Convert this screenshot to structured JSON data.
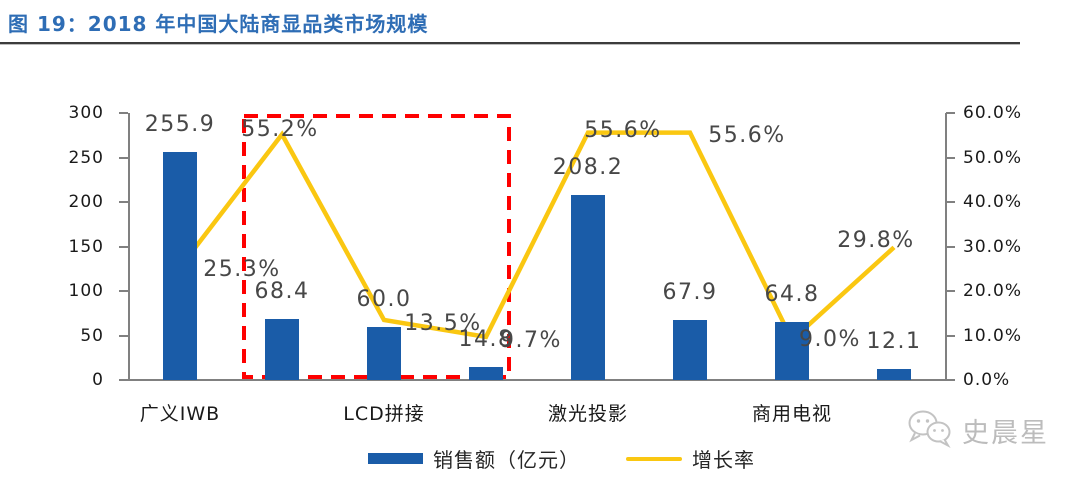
{
  "header": {
    "title": "图 19：2018 年中国大陆商显品类市场规模",
    "title_color": "#2E6DB5"
  },
  "chart_data": {
    "type": "bar",
    "subtype": "bar+line combo, dual y-axis",
    "categories": [
      "广义IWB",
      "LCD拼接",
      "激光投影",
      "商用电视"
    ],
    "category_slot_indexes": [
      0,
      2,
      4,
      6
    ],
    "series": [
      {
        "name": "销售额（亿元）",
        "type": "bar",
        "axis": "left",
        "values": [
          255.9,
          68.4,
          60.0,
          14.8,
          208.2,
          67.9,
          64.8,
          12.1
        ],
        "labels": [
          "255.9",
          "68.4",
          "60.0",
          "14.8",
          "208.2",
          "67.9",
          "64.8",
          "12.1"
        ],
        "color": "#1A5CA8"
      },
      {
        "name": "增长率",
        "type": "line",
        "axis": "right",
        "values": [
          25.3,
          55.2,
          13.5,
          9.7,
          55.6,
          55.6,
          9.0,
          29.8
        ],
        "labels": [
          "25.3%",
          "55.2%",
          "13.5%",
          "9.7%",
          "55.6%",
          "55.6%",
          "9.0%",
          "29.8%"
        ],
        "color": "#FAC711"
      }
    ],
    "left_axis": {
      "min": 0,
      "max": 300,
      "ticks": [
        "300",
        "250",
        "200",
        "150",
        "100",
        "50",
        "0"
      ]
    },
    "right_axis": {
      "min": 0,
      "max": 60,
      "ticks": [
        "60.0%",
        "50.0%",
        "40.0%",
        "30.0%",
        "20.0%",
        "10.0%",
        "0.0%"
      ]
    },
    "highlight_box": {
      "color": "#FE0000",
      "slots": [
        1,
        2,
        3
      ],
      "style": "dashed",
      "note": "red dashed box around LCD拼接 group bars"
    },
    "legend": [
      {
        "label": "销售额（亿元）",
        "swatch": "bar",
        "color": "#1A5CA8"
      },
      {
        "label": "增长率",
        "swatch": "line",
        "color": "#FAC711"
      }
    ],
    "grid": false,
    "legend_position": "bottom-center"
  },
  "watermark": {
    "icon": "wechat-icon",
    "text": "史晨星",
    "color": "#bcbcbc"
  }
}
